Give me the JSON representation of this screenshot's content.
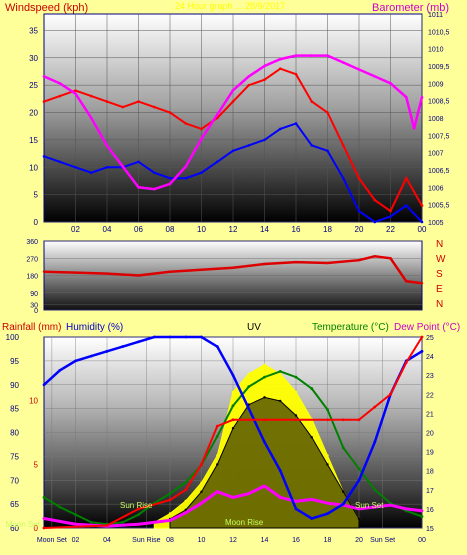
{
  "header": {
    "windspeed_title": "Windspeed (kph)",
    "top_banner": "24 Hour graph ... 28/9/2017",
    "barometer_title": "Barometer (mb)",
    "rainfall_title": "Rainfall (mm)",
    "humidity_title": "Humidity (%)",
    "uv_title": "UV",
    "temperature_title": "Temperature (°C)",
    "dewpoint_title": "Dew Point (°C)"
  },
  "colors": {
    "page_bg": "#ffff99",
    "windspeed": "#ff0000",
    "avg_wind": "#0000ff",
    "barometer": "#ff00ff",
    "direction": "#dd0000",
    "rain": "#ff0000",
    "humidity": "#0000ff",
    "uv": "#ffff00",
    "temperature": "#008000",
    "dewpoint": "#ff00ff",
    "solar": "#000000",
    "axis_text": "#000080",
    "title_red": "#cc0000",
    "title_magenta": "#cc00cc",
    "title_green": "#008000"
  },
  "chart_data": [
    {
      "type": "line",
      "name": "wind_barometer",
      "x_ticks": [
        "02",
        "04",
        "06",
        "08",
        "10",
        "12",
        "14",
        "16",
        "18",
        "20",
        "22",
        "00"
      ],
      "x_range_hours": [
        0,
        24
      ],
      "y_left": {
        "label": "Windspeed (kph)",
        "range": [
          0,
          38
        ],
        "ticks": [
          0,
          5,
          10,
          15,
          20,
          25,
          30,
          35
        ]
      },
      "y_right": {
        "label": "Barometer (mb)",
        "range": [
          1005,
          1011
        ],
        "ticks": [
          "1011",
          "1010,5",
          "1010",
          "1009,5",
          "1009",
          "1008,5",
          "1008",
          "1007,5",
          "1007",
          "1006,5",
          "1006",
          "1005,5",
          "1005"
        ]
      },
      "series": [
        {
          "key": "gust",
          "color": "#ff0000",
          "x": [
            0,
            1,
            2,
            3,
            4,
            5,
            6,
            7,
            8,
            9,
            10,
            11,
            12,
            13,
            14,
            15,
            16,
            17,
            18,
            19,
            20,
            21,
            22,
            23,
            24
          ],
          "y": [
            22,
            23,
            24,
            23,
            22,
            21,
            22,
            21,
            20,
            18,
            17,
            19,
            22,
            25,
            26,
            28,
            27,
            22,
            20,
            14,
            8,
            4,
            2,
            8,
            3
          ]
        },
        {
          "key": "average",
          "color": "#0000ff",
          "x": [
            0,
            1,
            2,
            3,
            4,
            5,
            6,
            7,
            8,
            9,
            10,
            11,
            12,
            13,
            14,
            15,
            16,
            17,
            18,
            19,
            20,
            21,
            22,
            23,
            24
          ],
          "y": [
            12,
            11,
            10,
            9,
            10,
            10,
            11,
            9,
            8,
            8,
            9,
            11,
            13,
            14,
            15,
            17,
            18,
            14,
            13,
            8,
            2,
            0,
            1,
            3,
            0
          ]
        },
        {
          "key": "barometer",
          "color": "#ff00ff",
          "x": [
            0,
            1,
            2,
            3,
            4,
            5,
            6,
            7,
            8,
            9,
            10,
            11,
            12,
            13,
            14,
            15,
            16,
            17,
            18,
            19,
            20,
            21,
            22,
            23,
            23.5,
            24
          ],
          "y": [
            1009.2,
            1009.0,
            1008.7,
            1008.0,
            1007.2,
            1006.6,
            1006.0,
            1005.95,
            1006.1,
            1006.6,
            1007.4,
            1008.1,
            1008.8,
            1009.2,
            1009.5,
            1009.7,
            1009.8,
            1009.8,
            1009.8,
            1009.6,
            1009.4,
            1009.2,
            1009.0,
            1008.6,
            1007.7,
            1008.6
          ]
        }
      ]
    },
    {
      "type": "line",
      "name": "wind_direction",
      "x_range_hours": [
        0,
        24
      ],
      "y_left": {
        "range": [
          0,
          360
        ],
        "ticks": [
          0,
          30,
          90,
          180,
          270,
          360
        ]
      },
      "y_right": {
        "labels": [
          "N",
          "W",
          "S",
          "E",
          "N"
        ]
      },
      "series": [
        {
          "key": "direction",
          "color": "#dd0000",
          "x": [
            0,
            2,
            4,
            6,
            8,
            10,
            12,
            14,
            16,
            18,
            20,
            21,
            22,
            23,
            24
          ],
          "y": [
            200,
            195,
            190,
            180,
            200,
            210,
            220,
            240,
            250,
            245,
            260,
            280,
            270,
            150,
            140
          ]
        }
      ]
    },
    {
      "type": "line",
      "name": "rain_humidity_temp",
      "x_ticks": [
        "Moon Set",
        "02",
        "04",
        "Sun Rise",
        "08",
        "10",
        "12",
        "14",
        "16",
        "18",
        "20",
        "Sun Set",
        "00"
      ],
      "x_range_hours": [
        0,
        24
      ],
      "y_left_humidity": {
        "range": [
          60,
          100
        ],
        "ticks": [
          60,
          65,
          70,
          75,
          80,
          85,
          90,
          95,
          100
        ]
      },
      "y_left_rain": {
        "range": [
          0,
          15
        ],
        "ticks": [
          0,
          5,
          10
        ]
      },
      "y_right_temp": {
        "range": [
          15,
          25
        ],
        "ticks": [
          15,
          16,
          17,
          18,
          19,
          20,
          21,
          22,
          23,
          24,
          25
        ]
      },
      "annotations": [
        "Moon Set",
        "Sun Rise",
        "Moon Rise",
        "Sun Set"
      ],
      "series": [
        {
          "key": "rain",
          "color": "#ff0000",
          "x": [
            0,
            4,
            6,
            8,
            9,
            10,
            11,
            12,
            13,
            14,
            16,
            18,
            19,
            20,
            21,
            22,
            23,
            24
          ],
          "y": [
            0,
            0.2,
            1.5,
            2.2,
            3.0,
            5.0,
            8.0,
            8.5,
            8.5,
            8.5,
            8.5,
            8.5,
            8.5,
            8.5,
            9.5,
            10.5,
            13.0,
            15.0
          ]
        },
        {
          "key": "humidity",
          "color": "#0000ff",
          "x": [
            0,
            1,
            2,
            3,
            4,
            5,
            6,
            7,
            8,
            9,
            10,
            11,
            12,
            13,
            14,
            15,
            16,
            17,
            18,
            19,
            20,
            21,
            22,
            23,
            24
          ],
          "y": [
            90,
            93,
            95,
            96,
            97,
            98,
            99,
            100,
            100,
            100,
            100,
            98,
            92,
            85,
            78,
            72,
            64,
            62,
            63,
            65,
            70,
            78,
            88,
            95,
            97
          ]
        },
        {
          "key": "temperature",
          "color": "#008000",
          "x": [
            0,
            1,
            2,
            3,
            4,
            5,
            6,
            7,
            8,
            9,
            10,
            11,
            12,
            13,
            14,
            15,
            16,
            17,
            18,
            19,
            20,
            21,
            22,
            23,
            24
          ],
          "y": [
            16.6,
            16.1,
            15.7,
            15.3,
            15.2,
            15.3,
            15.7,
            16.3,
            16.8,
            17.4,
            18.3,
            19.8,
            21.4,
            22.4,
            22.9,
            23.2,
            22.9,
            22.3,
            21.2,
            19.2,
            18.1,
            17.0,
            16.3,
            15.9,
            15.6
          ]
        },
        {
          "key": "dewpoint",
          "color": "#ff00ff",
          "x": [
            0,
            2,
            4,
            6,
            8,
            9,
            10,
            11,
            12,
            13,
            14,
            15,
            16,
            17,
            18,
            19,
            20,
            21,
            22,
            23,
            24
          ],
          "y": [
            15.5,
            15.2,
            15.1,
            15.2,
            15.4,
            15.8,
            16.3,
            16.9,
            16.6,
            16.8,
            17.2,
            16.6,
            16.4,
            16.5,
            16.3,
            16.2,
            16.0,
            16.1,
            16.2,
            16.0,
            15.9
          ]
        },
        {
          "key": "uv",
          "color": "#ffff00",
          "x": [
            7,
            8,
            9,
            10,
            11,
            12,
            13,
            14,
            15,
            16,
            17,
            18,
            19,
            20
          ],
          "y": [
            0.3,
            0.8,
            1.5,
            2.5,
            4.0,
            7.5,
            8.5,
            9.0,
            8.5,
            7.5,
            6.0,
            4.0,
            2.0,
            0.5
          ]
        },
        {
          "key": "solar",
          "color": "#000000",
          "x": [
            8,
            9,
            10,
            11,
            12,
            13,
            14,
            15,
            16,
            17,
            18,
            19,
            20
          ],
          "y": [
            0.5,
            1.0,
            2.0,
            3.5,
            5.5,
            6.8,
            7.2,
            7.0,
            6.2,
            5.0,
            3.5,
            2.0,
            0.5
          ]
        }
      ]
    }
  ]
}
